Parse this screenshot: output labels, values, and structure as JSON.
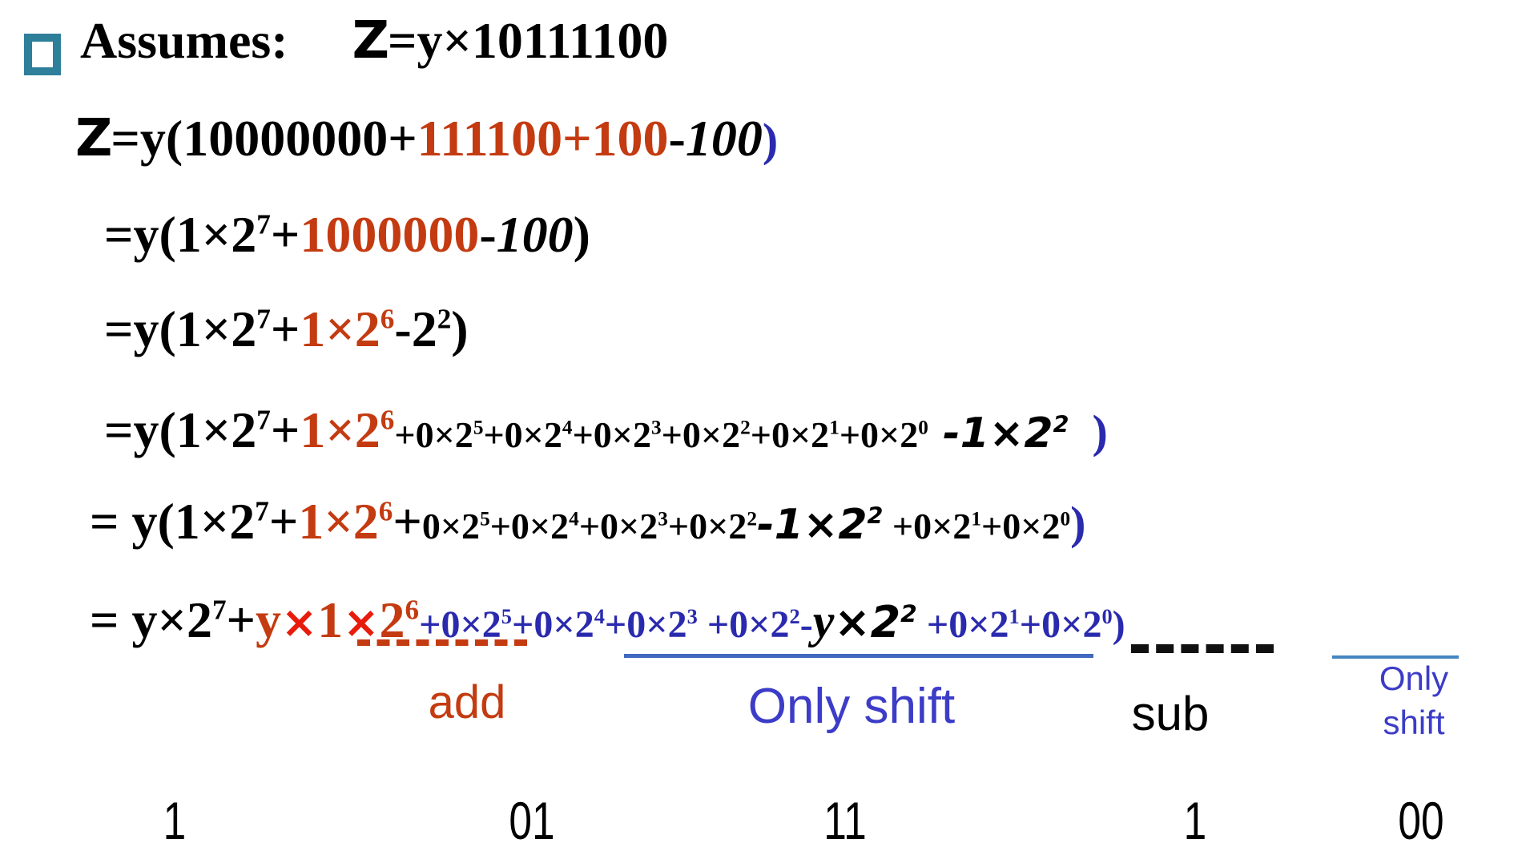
{
  "colors": {
    "red": "#c43b11",
    "bright_red_times": "#e81c0c",
    "dark_blue": "#2a2aae",
    "label_blue": "#3c3cc8",
    "underline_blue": "#4169c0",
    "bullet_teal": "#2e7f99",
    "black": "#000000"
  },
  "annotations": {
    "add": "add",
    "only_shift": "Only shift",
    "sub": "sub",
    "only": "Only",
    "shift": "shift"
  },
  "bits": [
    "1",
    "01",
    "11",
    "1",
    "00"
  ],
  "lines": {
    "l1": [
      {
        "t": "Assumes:",
        "c": "black-big"
      },
      {
        "t": "     ",
        "c": "black-big"
      },
      {
        "t": "Z",
        "c": "z-sans"
      },
      {
        "t": "=y×10111100",
        "c": "black-big"
      }
    ],
    "l2": [
      {
        "t": "Z",
        "c": "z-sans"
      },
      {
        "t": "=y(10000000+",
        "c": "black-big"
      },
      {
        "t": "111100+100",
        "c": "red-big"
      },
      {
        "t": "-",
        "c": "black-big"
      },
      {
        "t": "100",
        "c": "italic-serif"
      },
      {
        "t": ")",
        "c": "blue-big"
      }
    ],
    "l3": [
      {
        "t": "=y(1×2",
        "c": "black-big"
      },
      {
        "t": "7",
        "c": "black-big",
        "sup": true
      },
      {
        "t": "+",
        "c": "black-big"
      },
      {
        "t": "1000000",
        "c": "red-big"
      },
      {
        "t": "-",
        "c": "black-big"
      },
      {
        "t": "100",
        "c": "italic-serif"
      },
      {
        "t": ")",
        "c": "black-big"
      }
    ],
    "l4": [
      {
        "t": "=y(1×2",
        "c": "black-big"
      },
      {
        "t": "7",
        "c": "black-big",
        "sup": true
      },
      {
        "t": "+",
        "c": "black-big"
      },
      {
        "t": "1×2",
        "c": "red-big"
      },
      {
        "t": "6",
        "c": "red-big",
        "sup": true
      },
      {
        "t": "-2",
        "c": "black-big"
      },
      {
        "t": "2",
        "c": "black-big",
        "sup": true
      },
      {
        "t": ")",
        "c": "black-big"
      }
    ],
    "l5": [
      {
        "t": "=y(1×2",
        "c": "black-big"
      },
      {
        "t": "7",
        "c": "black-big",
        "sup": true
      },
      {
        "t": "+",
        "c": "black-big"
      },
      {
        "t": "1×2",
        "c": "red-big"
      },
      {
        "t": "6",
        "c": "red-big",
        "sup": true
      },
      {
        "t": "+0×2",
        "c": "black-small"
      },
      {
        "t": "5",
        "c": "black-small",
        "sup": true
      },
      {
        "t": "+0×2",
        "c": "black-small"
      },
      {
        "t": "4",
        "c": "black-small",
        "sup": true
      },
      {
        "t": "+0×2",
        "c": "black-small"
      },
      {
        "t": "3",
        "c": "black-small",
        "sup": true
      },
      {
        "t": "+0×2",
        "c": "black-small"
      },
      {
        "t": "2",
        "c": "black-small",
        "sup": true
      },
      {
        "t": "+0×2",
        "c": "black-small"
      },
      {
        "t": "1",
        "c": "black-small",
        "sup": true
      },
      {
        "t": "+0×2",
        "c": "black-small"
      },
      {
        "t": "0",
        "c": "black-small",
        "sup": true
      },
      {
        "t": " -1×2",
        "c": "bold-italic"
      },
      {
        "t": "2",
        "c": "bold-italic",
        "sup": true
      },
      {
        "t": "  )",
        "c": "blue-big"
      }
    ],
    "l6": [
      {
        "t": "= y(1×2",
        "c": "black-big"
      },
      {
        "t": "7",
        "c": "black-big",
        "sup": true
      },
      {
        "t": "+",
        "c": "black-big"
      },
      {
        "t": "1×2",
        "c": "red-big"
      },
      {
        "t": "6",
        "c": "red-big",
        "sup": true
      },
      {
        "t": "+",
        "c": "black-big"
      },
      {
        "t": "0×2",
        "c": "black-small"
      },
      {
        "t": "5",
        "c": "black-small",
        "sup": true
      },
      {
        "t": "+0×2",
        "c": "black-small"
      },
      {
        "t": "4",
        "c": "black-small",
        "sup": true
      },
      {
        "t": "+0×2",
        "c": "black-small"
      },
      {
        "t": "3",
        "c": "black-small",
        "sup": true
      },
      {
        "t": "+0×2",
        "c": "black-small"
      },
      {
        "t": "2",
        "c": "black-small",
        "sup": true
      },
      {
        "t": "-1×2",
        "c": "bold-italic"
      },
      {
        "t": "2",
        "c": "bold-italic",
        "sup": true
      },
      {
        "t": " +0×2",
        "c": "black-small"
      },
      {
        "t": "1",
        "c": "black-small",
        "sup": true
      },
      {
        "t": "+0×2",
        "c": "black-small"
      },
      {
        "t": "0",
        "c": "black-small",
        "sup": true
      },
      {
        "t": ")",
        "c": "blue-big"
      }
    ],
    "l7": [
      {
        "t": "= y×2",
        "c": "black-big"
      },
      {
        "t": "7",
        "c": "black-big",
        "sup": true
      },
      {
        "t": "+",
        "c": "black-big"
      },
      {
        "t": "y",
        "c": "red-big"
      },
      {
        "t": "×",
        "c": "times-red"
      },
      {
        "t": "1",
        "c": "red-big"
      },
      {
        "t": "×",
        "c": "times-red"
      },
      {
        "t": "2",
        "c": "red-big"
      },
      {
        "t": "6",
        "c": "red-big",
        "sup": true
      },
      {
        "t": "+0×2",
        "c": "blue-small"
      },
      {
        "t": "5",
        "c": "blue-small",
        "sup": true
      },
      {
        "t": "+0×2",
        "c": "blue-small"
      },
      {
        "t": "4",
        "c": "blue-small",
        "sup": true
      },
      {
        "t": "+0×2",
        "c": "blue-small"
      },
      {
        "t": "3",
        "c": "blue-small",
        "sup": true
      },
      {
        "t": " +0×2",
        "c": "blue-small"
      },
      {
        "t": "2",
        "c": "blue-small",
        "sup": true
      },
      {
        "t": "-",
        "c": "blue-small"
      },
      {
        "t": "y",
        "c": "italic-black7"
      },
      {
        "t": "×2",
        "c": "bold-italic7"
      },
      {
        "t": "2",
        "c": "bold-italic7",
        "sup": true
      },
      {
        "t": " +0×2",
        "c": "blue-small"
      },
      {
        "t": "1",
        "c": "blue-small",
        "sup": true
      },
      {
        "t": "+0×2",
        "c": "blue-small"
      },
      {
        "t": "0",
        "c": "blue-small",
        "sup": true
      },
      {
        "t": ")",
        "c": "blue-small"
      }
    ]
  }
}
